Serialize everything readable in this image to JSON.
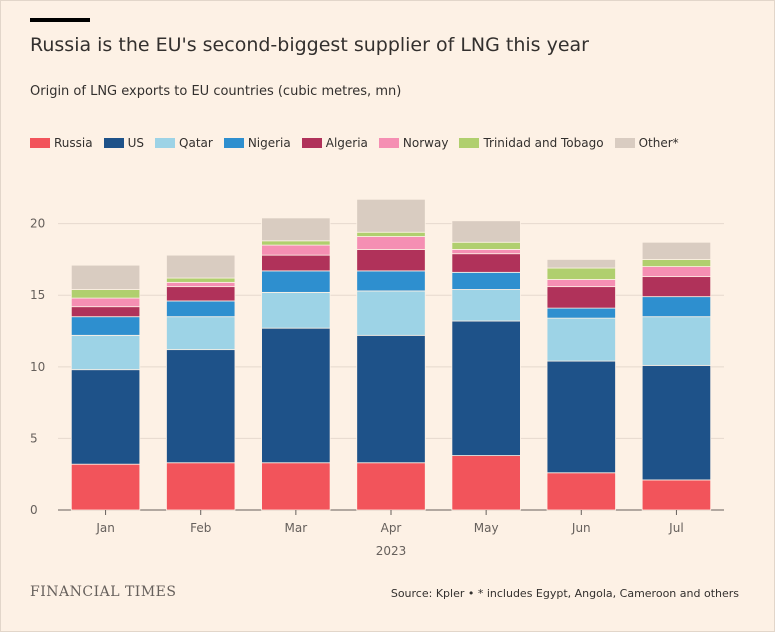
{
  "header": {
    "title": "Russia is the EU's second-biggest supplier of LNG this year",
    "subtitle": "Origin of LNG exports to EU countries (cubic metres, mn)"
  },
  "footer": {
    "brand": "FINANCIAL TIMES",
    "source": "Source: Kpler • * includes Egypt, Angola, Cameroon and others"
  },
  "chart_data": {
    "type": "bar",
    "stacked": true,
    "title": "Russia is the EU's second-biggest supplier of LNG this year",
    "subtitle": "Origin of LNG exports to EU countries (cubic metres, mn)",
    "xlabel": "2023",
    "ylabel": "",
    "ylim": [
      0,
      22
    ],
    "yticks": [
      0,
      5,
      10,
      15,
      20
    ],
    "grid": true,
    "legend_position": "top",
    "categories": [
      "Jan",
      "Feb",
      "Mar",
      "Apr",
      "May",
      "Jun",
      "Jul"
    ],
    "series": [
      {
        "name": "Russia",
        "color": "#f2545b",
        "values": [
          3.2,
          3.3,
          3.3,
          3.3,
          3.8,
          2.6,
          2.1
        ]
      },
      {
        "name": "US",
        "color": "#1e5289",
        "values": [
          6.6,
          7.9,
          9.4,
          8.9,
          9.4,
          7.8,
          8.0
        ]
      },
      {
        "name": "Qatar",
        "color": "#9dd3e6",
        "values": [
          2.4,
          2.3,
          2.5,
          3.1,
          2.2,
          3.0,
          3.4
        ]
      },
      {
        "name": "Nigeria",
        "color": "#2e8fcf",
        "values": [
          1.3,
          1.1,
          1.5,
          1.4,
          1.2,
          0.7,
          1.4
        ]
      },
      {
        "name": "Algeria",
        "color": "#b0325a",
        "values": [
          0.7,
          1.0,
          1.1,
          1.5,
          1.3,
          1.5,
          1.4
        ]
      },
      {
        "name": "Norway",
        "color": "#f58fb3",
        "values": [
          0.6,
          0.3,
          0.7,
          0.9,
          0.3,
          0.5,
          0.7
        ]
      },
      {
        "name": "Trinidad and Tobago",
        "color": "#b0cf6e",
        "values": [
          0.6,
          0.3,
          0.3,
          0.3,
          0.5,
          0.8,
          0.5
        ]
      },
      {
        "name": "Other*",
        "color": "#d9ccc1",
        "values": [
          1.7,
          1.6,
          1.6,
          2.3,
          1.5,
          0.6,
          1.2
        ]
      }
    ]
  }
}
